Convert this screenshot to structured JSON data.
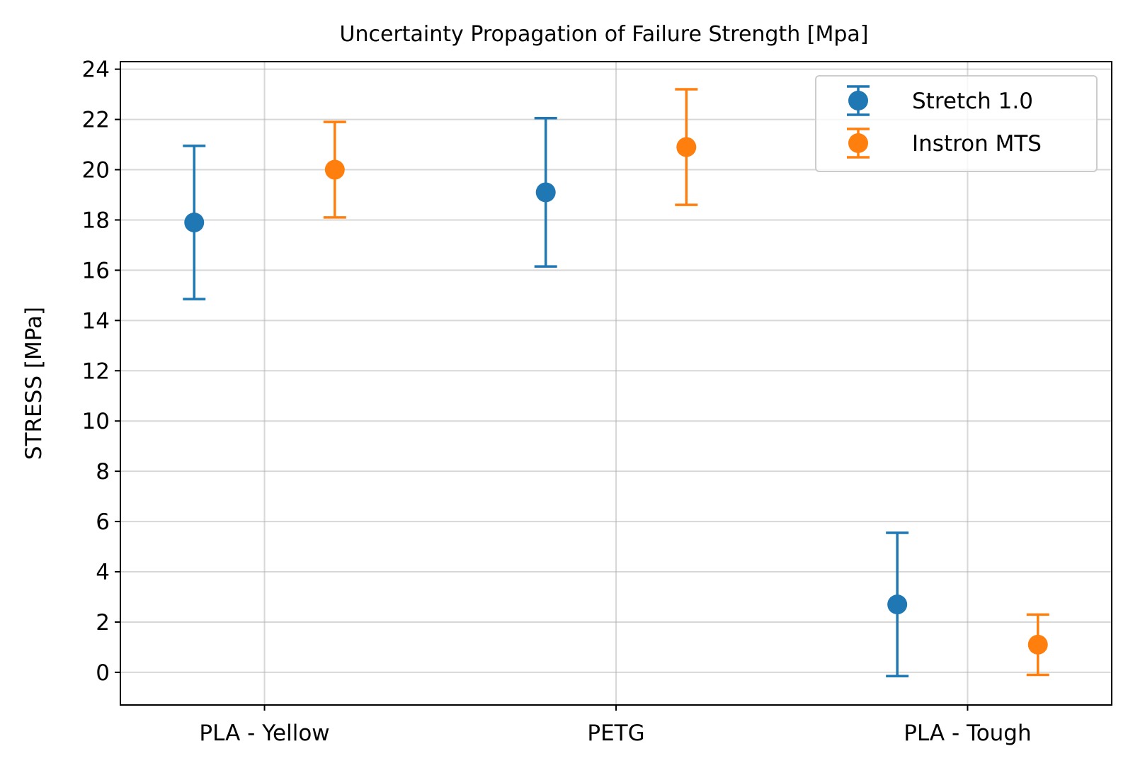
{
  "chart_data": {
    "type": "errorbar",
    "title": "Uncertainty Propagation of Failure Strength [Mpa]",
    "xlabel": "",
    "ylabel": "STRESS [MPa]",
    "categories": [
      "PLA - Yellow",
      "PETG",
      "PLA - Tough"
    ],
    "ylim": [
      -1.3,
      24.3
    ],
    "yticks": [
      0,
      2,
      4,
      6,
      8,
      10,
      12,
      14,
      16,
      18,
      20,
      22,
      24
    ],
    "grid": true,
    "legend_position": "top-right",
    "series": [
      {
        "name": "Stretch 1.0",
        "color": "#1f77b4",
        "offset": -0.2,
        "values": [
          17.9,
          19.1,
          2.7
        ],
        "errors": [
          3.05,
          2.95,
          2.85
        ]
      },
      {
        "name": "Instron MTS",
        "color": "#ff7f0e",
        "offset": 0.2,
        "values": [
          20.0,
          20.9,
          1.1
        ],
        "errors": [
          1.9,
          2.3,
          1.2
        ]
      }
    ]
  }
}
